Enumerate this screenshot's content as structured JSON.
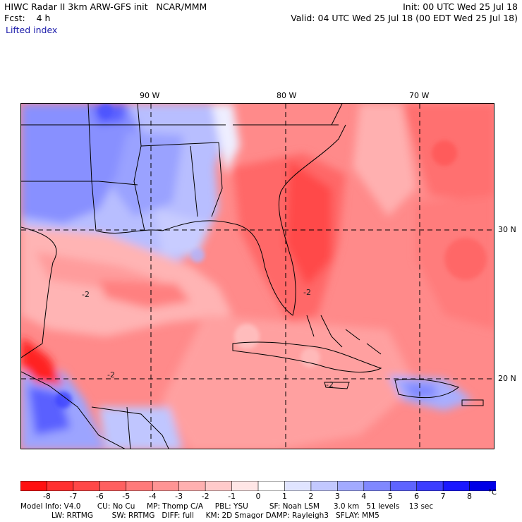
{
  "header": {
    "line1_left": "HIWC Radar II 3km ARW-GFS init   NCAR/MMM",
    "line2_left": "Fcst:    4 h",
    "line1_right": "Init: 00 UTC Wed 25 Jul 18",
    "line2_right": "Valid: 04 UTC Wed 25 Jul 18 (00 EDT Wed 25 Jul 18)",
    "field_name": "Lifted index"
  },
  "map": {
    "lon_labels": [
      "90 W",
      "80 W",
      "70 W"
    ],
    "lat_labels": [
      "30 N",
      "20 N"
    ],
    "contour_label": "-2"
  },
  "colorbar": {
    "unit": "°C",
    "ticks": [
      "-8",
      "-7",
      "-6",
      "-5",
      "-4",
      "-3",
      "-2",
      "-1",
      "0",
      "1",
      "2",
      "3",
      "4",
      "5",
      "6",
      "7",
      "8"
    ],
    "colors": [
      "#ff1010",
      "#ff3030",
      "#ff4848",
      "#ff6060",
      "#ff7a7a",
      "#ff9494",
      "#ffb0b0",
      "#ffcaca",
      "#ffe6e6",
      "#ffffff",
      "#e0e4ff",
      "#c2c8ff",
      "#a2aaff",
      "#8088ff",
      "#5e64ff",
      "#3c3eff",
      "#1a18ff",
      "#0000e6"
    ]
  },
  "footer": {
    "line1": "Model Info: V4.0       CU: No Cu     MP: Thomp C/A     PBL: YSU         SF: Noah LSM      3.0 km   51 levels    13 sec",
    "line2": "LW: RRTMG        SW: RRTMG   DIFF: full     KM: 2D Smagor DAMP: Rayleigh3   SFLAY: MM5"
  }
}
